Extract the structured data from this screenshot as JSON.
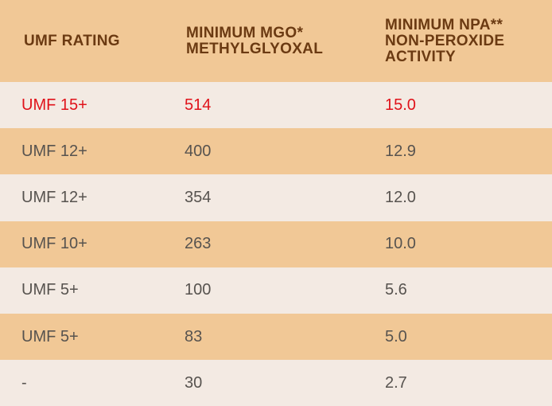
{
  "table": {
    "headers": [
      {
        "label": "UMF RATING"
      },
      {
        "label": "MINIMUM MGO*\nMETHYLGLYOXAL"
      },
      {
        "label": "MINIMUM NPA**\nNON-PEROXIDE\nACTIVITY"
      }
    ],
    "rows": [
      {
        "rating": "UMF 15+",
        "mgo": "514",
        "npa": "15.0"
      },
      {
        "rating": "UMF 12+",
        "mgo": "400",
        "npa": "12.9"
      },
      {
        "rating": "UMF 12+",
        "mgo": "354",
        "npa": "12.0"
      },
      {
        "rating": "UMF 10+",
        "mgo": "263",
        "npa": "10.0"
      },
      {
        "rating": "UMF 5+",
        "mgo": "100",
        "npa": "5.6"
      },
      {
        "rating": "UMF 5+",
        "mgo": "83",
        "npa": "5.0"
      },
      {
        "rating": "-",
        "mgo": "30",
        "npa": "2.7"
      }
    ]
  },
  "colors": {
    "header_bg": "#F1C896",
    "header_text": "#6B3A12",
    "row_alt_bg": "#F1C896",
    "row_plain_bg": "#F3EAE3",
    "body_text": "#57534F",
    "highlight_text": "#E0121A"
  }
}
